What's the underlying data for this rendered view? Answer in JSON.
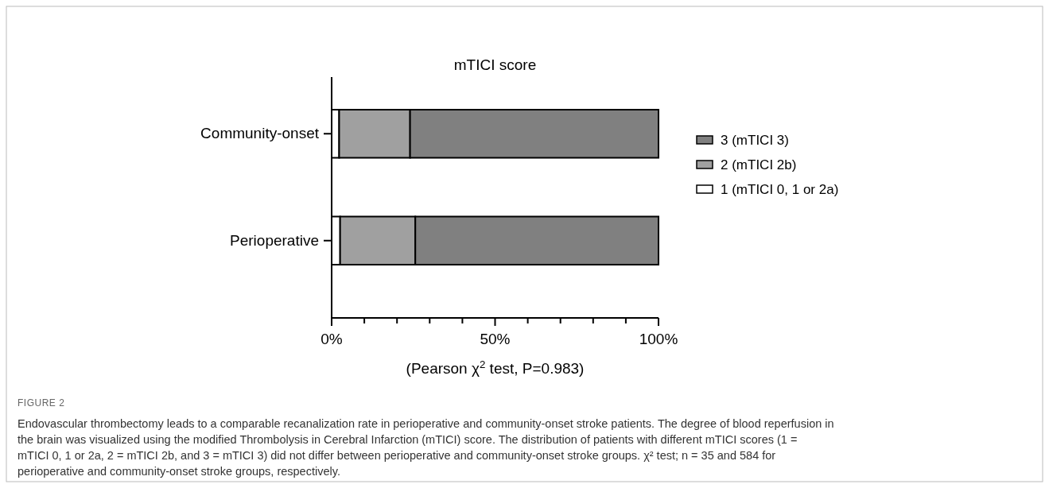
{
  "chart_data": {
    "type": "bar",
    "orientation": "horizontal",
    "stacked": true,
    "title": "mTICI score",
    "xlabel": "(Pearson χ$^{2}$ test, P=0.983)",
    "categories": [
      "Community-onset",
      "Perioperative"
    ],
    "series": [
      {
        "name": "1 (mTICI 0, 1 or 2a)",
        "color": "#ffffff",
        "values": [
          2.3,
          2.6
        ]
      },
      {
        "name": "2 (mTICI 2b)",
        "color": "#a0a0a0",
        "values": [
          21.7,
          23.0
        ]
      },
      {
        "name": "3 (mTICI 3)",
        "color": "#808080",
        "values": [
          76.0,
          74.4
        ]
      }
    ],
    "xlim": [
      0,
      100
    ],
    "xticks": [
      {
        "value": 0,
        "label": "0%"
      },
      {
        "value": 10,
        "label": null
      },
      {
        "value": 20,
        "label": null
      },
      {
        "value": 30,
        "label": null
      },
      {
        "value": 40,
        "label": null
      },
      {
        "value": 50,
        "label": "50%"
      },
      {
        "value": 60,
        "label": null
      },
      {
        "value": 70,
        "label": null
      },
      {
        "value": 80,
        "label": null
      },
      {
        "value": 90,
        "label": null
      },
      {
        "value": 100,
        "label": "100%"
      }
    ],
    "legend": "right",
    "grid": false,
    "annotations": [
      "FIGURE 2",
      "Endovascular thrombectomy leads to a comparable recanalization rate in perioperative and community-onset stroke patients. The degree of blood reperfusion in the brain was visualized using the modified Thrombolysis in Cerebral Infarction (mTICI) score. The distribution of patients with different mTICI scores (1 = mTICI 0, 1 or 2a, 2 = mTICI 2b, and 3 = mTICI 3) did not differ between perioperative and community-onset stroke groups. χ² test; n = 35 and 584 for perioperative and community-onset stroke groups, respectively."
    ]
  }
}
